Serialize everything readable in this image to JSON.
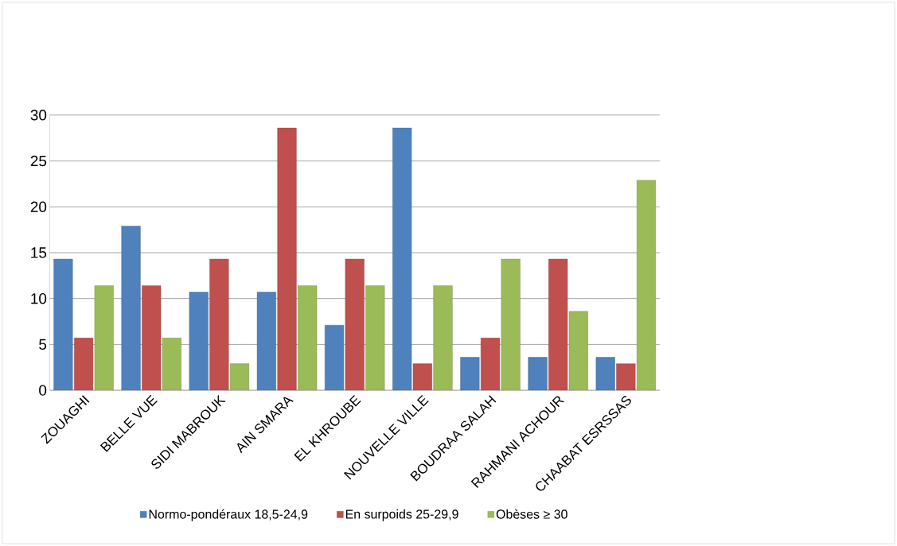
{
  "chart_data": {
    "type": "bar",
    "categories": [
      "ZOUAGHI",
      "BELLE VUE",
      "SIDI MABROUK",
      "AIN SMARA",
      "EL KHROUBE",
      "NOUVELLE VILLE",
      "BOUDRAA SALAH",
      "RAHMANI ACHOUR",
      "CHAABAT ESRSSAS"
    ],
    "series": [
      {
        "name": "Normo-pondéraux 18,5-24,9",
        "color": "#4f81bd",
        "values": [
          14.3,
          17.9,
          10.7,
          10.7,
          7.1,
          28.6,
          3.6,
          3.6,
          3.6
        ]
      },
      {
        "name": "En surpoids 25-29,9",
        "color": "#c0504d",
        "values": [
          5.7,
          11.4,
          14.3,
          28.6,
          14.3,
          2.9,
          5.7,
          14.3,
          2.9
        ]
      },
      {
        "name": "Obèses ≥ 30",
        "color": "#9bbb59",
        "values": [
          11.4,
          5.7,
          2.9,
          11.4,
          11.4,
          11.4,
          14.3,
          8.6,
          22.9
        ]
      }
    ],
    "ylim": [
      0,
      30
    ],
    "yticks": [
      0,
      5,
      10,
      15,
      20,
      25,
      30
    ],
    "grid": "y",
    "legend": "bottom"
  }
}
